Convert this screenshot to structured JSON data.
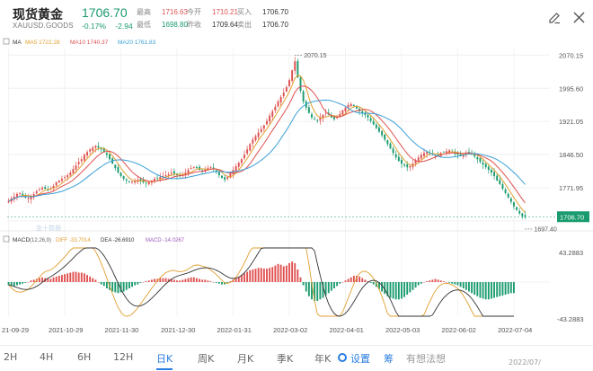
{
  "header": {
    "title": "现货黄金",
    "code": "XAUUSD.GOODS",
    "price": "1706.70",
    "change_pct": "-0.17%",
    "change_abs": "-2.94",
    "stats": [
      {
        "label": "最高",
        "value": "1716.63",
        "tone": "up"
      },
      {
        "label": "最低",
        "value": "1698.80",
        "tone": "down"
      },
      {
        "label": "今开",
        "value": "1710.21",
        "tone": "up"
      },
      {
        "label": "昨收",
        "value": "1709.64",
        "tone": "dark"
      },
      {
        "label": "买入",
        "value": "1706.70",
        "tone": "dark"
      },
      {
        "label": "卖出",
        "value": "1706.70",
        "tone": "dark"
      }
    ]
  },
  "icons": {
    "edit": "edit-pencil-icon",
    "close": "close-icon",
    "settings": "gear-icon"
  },
  "colors": {
    "up": "#e05050",
    "down": "#1a9b6e",
    "ma5": "#e0a030",
    "ma10": "#e05050",
    "ma20": "#3aa0d8",
    "diff": "#e0a030",
    "dea": "#333333",
    "accent": "#2a7de1"
  },
  "chart_data": {
    "type": "candlestick",
    "ma_legend": {
      "label": "MA",
      "ma5": "MA5 1722.28",
      "ma10": "MA10 1740.37",
      "ma20": "MA20 1761.83"
    },
    "macd_legend": {
      "label": "MACD",
      "params": "(12,26,9)",
      "diff": "DIFF -33.7014",
      "dea": "DEA -26.6910",
      "macd": "MACD -14.0267"
    },
    "price_axis": [
      "2070.15",
      "1995.60",
      "1921.05",
      "1846.50",
      "1771.95",
      "1697.40"
    ],
    "price_range": [
      1685,
      2085
    ],
    "high_marker": "2070.15",
    "low_marker": "1697.40",
    "current_price_tag": "1706.70",
    "macd_axis": [
      "43.2883",
      "-43.2883"
    ],
    "macd_range": [
      -43.2883,
      43.2883
    ],
    "x_labels": [
      "21-09-29",
      "2021-10-29",
      "2021-11-30",
      "2021-12-30",
      "2022-01-31",
      "2022-03-02",
      "2022-04-01",
      "2022-05-03",
      "2022-06-02",
      "2022-07-04"
    ],
    "x_label_idx": [
      0,
      20,
      40,
      60,
      80,
      100,
      120,
      140,
      160,
      180
    ],
    "watermark": "金十数据",
    "closes": [
      1742,
      1748,
      1752,
      1758,
      1760,
      1754,
      1750,
      1748,
      1752,
      1758,
      1764,
      1768,
      1772,
      1770,
      1766,
      1770,
      1776,
      1784,
      1788,
      1792,
      1796,
      1800,
      1806,
      1814,
      1822,
      1830,
      1836,
      1846,
      1852,
      1858,
      1862,
      1866,
      1862,
      1858,
      1852,
      1846,
      1836,
      1826,
      1816,
      1806,
      1798,
      1792,
      1788,
      1784,
      1786,
      1788,
      1790,
      1788,
      1784,
      1782,
      1784,
      1788,
      1792,
      1794,
      1796,
      1798,
      1800,
      1802,
      1806,
      1804,
      1800,
      1798,
      1800,
      1806,
      1812,
      1816,
      1818,
      1816,
      1812,
      1810,
      1812,
      1816,
      1818,
      1814,
      1808,
      1800,
      1794,
      1790,
      1796,
      1804,
      1812,
      1820,
      1828,
      1836,
      1846,
      1858,
      1870,
      1880,
      1888,
      1896,
      1904,
      1912,
      1922,
      1934,
      1944,
      1954,
      1966,
      1976,
      1986,
      1998,
      2014,
      2036,
      2056,
      2020,
      1990,
      1966,
      1952,
      1940,
      1930,
      1926,
      1922,
      1930,
      1936,
      1940,
      1936,
      1930,
      1926,
      1930,
      1938,
      1946,
      1952,
      1958,
      1960,
      1956,
      1950,
      1944,
      1940,
      1936,
      1930,
      1922,
      1914,
      1906,
      1898,
      1890,
      1880,
      1870,
      1860,
      1850,
      1840,
      1832,
      1826,
      1822,
      1818,
      1820,
      1826,
      1834,
      1840,
      1846,
      1850,
      1852,
      1850,
      1846,
      1844,
      1846,
      1850,
      1852,
      1854,
      1856,
      1852,
      1848,
      1846,
      1844,
      1846,
      1850,
      1852,
      1848,
      1842,
      1836,
      1830,
      1824,
      1818,
      1812,
      1806,
      1798,
      1788,
      1780,
      1770,
      1760,
      1750,
      1740,
      1730,
      1722,
      1714,
      1708,
      1706
    ],
    "macd_hist": [
      -4,
      -5,
      -5,
      -4,
      -3,
      -2,
      -1,
      0,
      2,
      3,
      4,
      5,
      6,
      5,
      4,
      4,
      6,
      7,
      8,
      9,
      10,
      11,
      12,
      13,
      13,
      12,
      12,
      11,
      9,
      7,
      5,
      3,
      0,
      -3,
      -5,
      -8,
      -10,
      -12,
      -13,
      -14,
      -13,
      -12,
      -10,
      -8,
      -6,
      -4,
      -3,
      -1,
      0,
      1,
      2,
      3,
      4,
      4,
      5,
      5,
      5,
      4,
      4,
      3,
      2,
      2,
      3,
      4,
      5,
      6,
      6,
      5,
      4,
      3,
      3,
      2,
      1,
      0,
      -1,
      -2,
      -3,
      -3,
      -1,
      1,
      3,
      5,
      7,
      9,
      11,
      13,
      15,
      16,
      17,
      18,
      18,
      17,
      17,
      18,
      19,
      21,
      23,
      22,
      20,
      21,
      24,
      26,
      24,
      16,
      6,
      -4,
      -12,
      -18,
      -22,
      -24,
      -24,
      -22,
      -20,
      -17,
      -14,
      -11,
      -8,
      -5,
      -2,
      0,
      2,
      4,
      6,
      8,
      8,
      7,
      5,
      3,
      1,
      -1,
      -3,
      -6,
      -9,
      -12,
      -15,
      -18,
      -20,
      -21,
      -22,
      -22,
      -21,
      -19,
      -16,
      -13,
      -10,
      -7,
      -4,
      -2,
      0,
      1,
      2,
      3,
      4,
      3,
      2,
      1,
      0,
      -1,
      -2,
      -3,
      -4,
      -6,
      -8,
      -10,
      -12,
      -14,
      -16,
      -18,
      -20,
      -21,
      -22,
      -22,
      -21,
      -20,
      -19,
      -18,
      -17,
      -16,
      -15,
      -14,
      -14
    ]
  },
  "bottom_bar": {
    "periods": [
      "2H",
      "4H",
      "6H",
      "12H",
      "日K",
      "周K",
      "月K",
      "季K",
      "年K"
    ],
    "active_index": 4,
    "settings_label": "设置",
    "extra_icon_label": "筹",
    "prompt_label": "有想法想",
    "cut_off_text": "2022/07/"
  }
}
